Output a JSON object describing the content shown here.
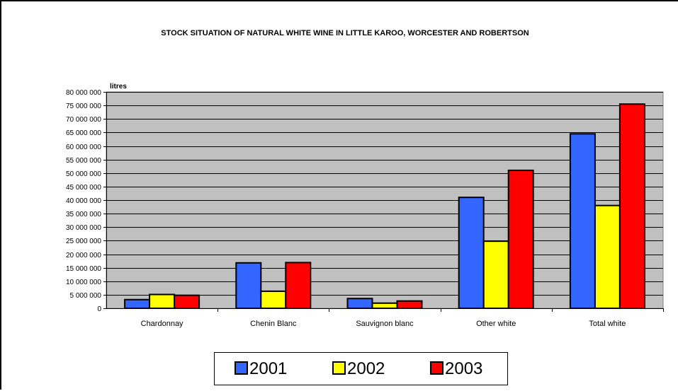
{
  "chart_data": {
    "type": "bar",
    "title": "STOCK SITUATION OF NATURAL WHITE WINE IN LITTLE KAROO, WORCESTER AND ROBERTSON",
    "ylabel": "litres",
    "xlabel": "",
    "categories": [
      "Chardonnay",
      "Chenin Blanc",
      "Sauvignon blanc",
      "Other white",
      "Total white"
    ],
    "series": [
      {
        "name": "2001",
        "color": "#3366FF",
        "values": [
          3200000,
          16800000,
          3600000,
          41000000,
          64500000
        ]
      },
      {
        "name": "2002",
        "color": "#FFFF00",
        "values": [
          5100000,
          6300000,
          1900000,
          24800000,
          38000000
        ]
      },
      {
        "name": "2003",
        "color": "#FF0000",
        "values": [
          4800000,
          16900000,
          2700000,
          51000000,
          75500000
        ]
      }
    ],
    "ylim": [
      0,
      80000000
    ],
    "yticks": [
      "0",
      "5 000 000",
      "10 000 000",
      "15 000 000",
      "20 000 000",
      "25 000 000",
      "30 000 000",
      "35 000 000",
      "40 000 000",
      "45 000 000",
      "50 000 000",
      "55 000 000",
      "60 000 000",
      "65 000 000",
      "70 000 000",
      "75 000 000",
      "80 000 000"
    ],
    "grid": true,
    "plot_background": "#C0C0C0",
    "legend_position": "bottom"
  }
}
